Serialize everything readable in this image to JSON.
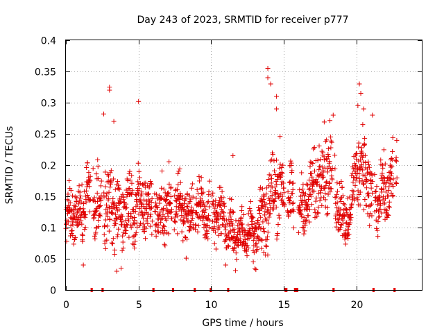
{
  "chart_data": {
    "type": "scatter",
    "title": "Day 243 of 2023, SRMTID for receiver p777",
    "xlabel": "GPS time / hours",
    "ylabel": "SRMTID / TECUs",
    "xlim": [
      0,
      24.5
    ],
    "ylim": [
      0,
      0.4
    ],
    "xticks": [
      0,
      5,
      10,
      15,
      20
    ],
    "xtick_labels": [
      "0",
      "5",
      "10",
      "15",
      "20"
    ],
    "yticks": [
      0,
      0.05,
      0.1,
      0.15,
      0.2,
      0.25,
      0.3,
      0.35,
      0.4
    ],
    "ytick_labels": [
      "0",
      "0.05",
      "0.1",
      "0.15",
      "0.2",
      "0.25",
      "0.3",
      "0.35",
      "0.4"
    ],
    "grid": true,
    "marker": "plus",
    "color": "#e00000",
    "series_name": "SRMTID",
    "trend": [
      [
        0.0,
        0.11
      ],
      [
        0.5,
        0.12
      ],
      [
        1.0,
        0.12
      ],
      [
        1.5,
        0.14
      ],
      [
        2.0,
        0.15
      ],
      [
        2.5,
        0.13
      ],
      [
        3.0,
        0.13
      ],
      [
        3.5,
        0.12
      ],
      [
        4.0,
        0.13
      ],
      [
        4.5,
        0.14
      ],
      [
        5.0,
        0.13
      ],
      [
        5.5,
        0.14
      ],
      [
        6.0,
        0.13
      ],
      [
        6.5,
        0.12
      ],
      [
        7.0,
        0.13
      ],
      [
        7.5,
        0.14
      ],
      [
        8.0,
        0.13
      ],
      [
        8.5,
        0.12
      ],
      [
        9.0,
        0.13
      ],
      [
        9.5,
        0.13
      ],
      [
        10.0,
        0.12
      ],
      [
        10.5,
        0.12
      ],
      [
        11.0,
        0.11
      ],
      [
        11.5,
        0.09
      ],
      [
        12.0,
        0.09
      ],
      [
        12.5,
        0.09
      ],
      [
        13.0,
        0.1
      ],
      [
        13.5,
        0.11
      ],
      [
        14.0,
        0.14
      ],
      [
        14.5,
        0.17
      ],
      [
        15.0,
        0.16
      ],
      [
        15.5,
        0.14
      ],
      [
        16.0,
        0.12
      ],
      [
        16.5,
        0.14
      ],
      [
        17.0,
        0.16
      ],
      [
        17.5,
        0.19
      ],
      [
        18.0,
        0.2
      ],
      [
        18.5,
        0.17
      ],
      [
        19.0,
        0.12
      ],
      [
        19.5,
        0.11
      ],
      [
        20.0,
        0.2
      ],
      [
        20.5,
        0.2
      ],
      [
        21.0,
        0.15
      ],
      [
        21.5,
        0.14
      ],
      [
        22.0,
        0.15
      ],
      [
        22.5,
        0.18
      ],
      [
        22.8,
        0.19
      ]
    ],
    "spread": [
      [
        0.0,
        0.04
      ],
      [
        2.0,
        0.06
      ],
      [
        4.0,
        0.06
      ],
      [
        8.0,
        0.05
      ],
      [
        11.0,
        0.04
      ],
      [
        12.5,
        0.03
      ],
      [
        13.8,
        0.08
      ],
      [
        15.0,
        0.06
      ],
      [
        16.0,
        0.04
      ],
      [
        18.0,
        0.07
      ],
      [
        19.5,
        0.04
      ],
      [
        20.5,
        0.07
      ],
      [
        22.8,
        0.05
      ]
    ],
    "peaks": [
      [
        3.0,
        0.325
      ],
      [
        3.0,
        0.32
      ],
      [
        5.0,
        0.302
      ],
      [
        13.9,
        0.355
      ],
      [
        13.9,
        0.34
      ],
      [
        14.1,
        0.33
      ],
      [
        14.5,
        0.31
      ],
      [
        14.5,
        0.29
      ],
      [
        20.2,
        0.33
      ],
      [
        20.3,
        0.315
      ],
      [
        20.1,
        0.295
      ],
      [
        20.5,
        0.29
      ],
      [
        21.1,
        0.28
      ],
      [
        18.4,
        0.28
      ],
      [
        2.6,
        0.282
      ],
      [
        3.3,
        0.27
      ],
      [
        11.5,
        0.215
      ],
      [
        11.0,
        0.04
      ],
      [
        3.5,
        0.03
      ],
      [
        3.8,
        0.035
      ],
      [
        1.2,
        0.04
      ],
      [
        12.9,
        0.045
      ]
    ],
    "data_gaps": [
      [
        1.7,
        1.85
      ],
      [
        2.45,
        2.6
      ],
      [
        5.95,
        6.1
      ],
      [
        7.3,
        7.45
      ],
      [
        8.8,
        8.9
      ],
      [
        9.9,
        10.05
      ],
      [
        11.1,
        11.15
      ],
      [
        15.05,
        15.25
      ],
      [
        15.7,
        16.0
      ],
      [
        18.35,
        18.5
      ],
      [
        21.1,
        21.25
      ],
      [
        22.55,
        22.7
      ]
    ]
  }
}
